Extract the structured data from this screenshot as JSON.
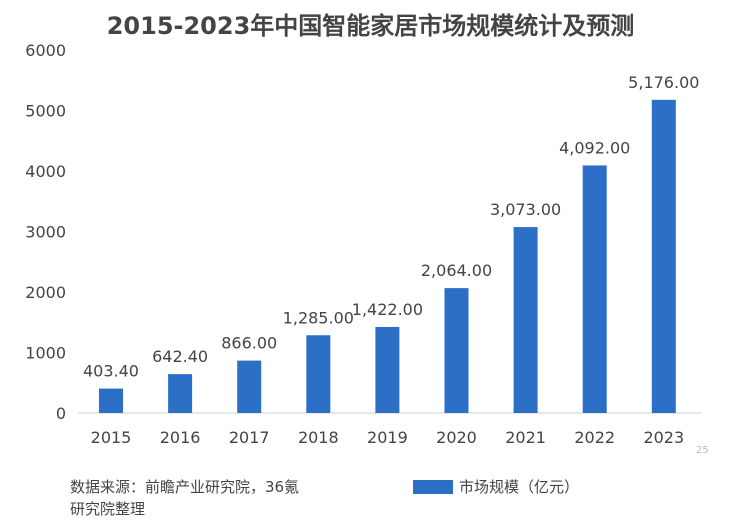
{
  "chart_data": {
    "type": "bar",
    "title": "2015-2023年中国智能家居市场规模统计及预测",
    "categories": [
      "2015",
      "2016",
      "2017",
      "2018",
      "2019",
      "2020",
      "2021",
      "2022",
      "2023"
    ],
    "series": [
      {
        "name": "市场规模（亿元）",
        "values": [
          403.4,
          642.4,
          866.0,
          1285.0,
          1422.0,
          2064.0,
          3073.0,
          4092.0,
          5176.0
        ]
      }
    ],
    "data_labels": [
      "403.40",
      "642.40",
      "866.00",
      "1,285.00",
      "1,422.00",
      "2,064.00",
      "3,073.00",
      "4,092.00",
      "5,176.00"
    ],
    "yticks": [
      "0",
      "1000",
      "2000",
      "3000",
      "4000",
      "5000",
      "6000"
    ],
    "ylim": [
      0,
      6000
    ],
    "grid": false,
    "legend": "bottom-right",
    "color": "#2b6fc6"
  },
  "source": {
    "line1": "数据来源：前瞻产业研究院，36氪",
    "line2": "研究院整理"
  },
  "page_number": "25"
}
